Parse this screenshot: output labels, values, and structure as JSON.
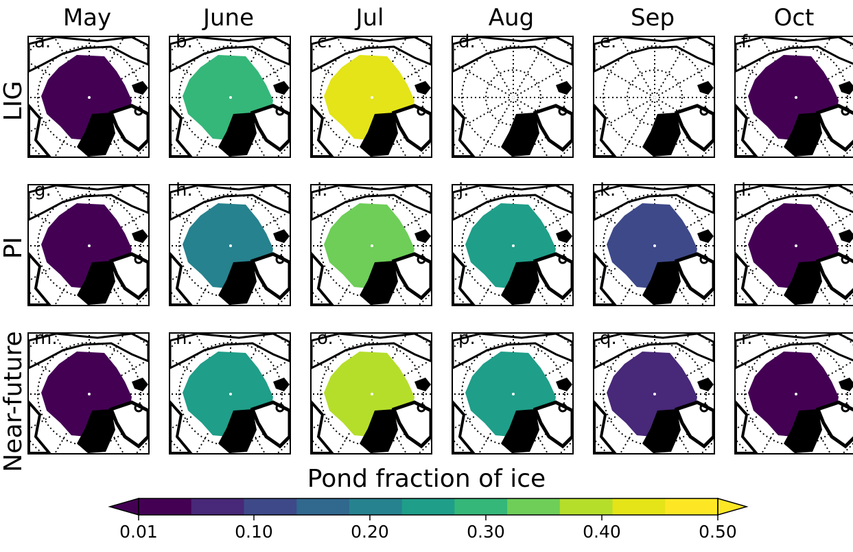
{
  "columns": [
    "May",
    "June",
    "Jul",
    "Aug",
    "Sep",
    "Oct"
  ],
  "rows": [
    "LIG",
    "PI",
    "Near-future"
  ],
  "panels": [
    {
      "label": "a.",
      "value": 0.03
    },
    {
      "label": "b.",
      "value": 0.33
    },
    {
      "label": "c.",
      "value": 0.48
    },
    {
      "label": "d.",
      "value": null
    },
    {
      "label": "e.",
      "value": null
    },
    {
      "label": "f.",
      "value": 0.04
    },
    {
      "label": "g.",
      "value": 0.04
    },
    {
      "label": "h.",
      "value": 0.22
    },
    {
      "label": "i.",
      "value": 0.37
    },
    {
      "label": "j.",
      "value": 0.3
    },
    {
      "label": "k.",
      "value": 0.1
    },
    {
      "label": "l.",
      "value": 0.04
    },
    {
      "label": "m.",
      "value": 0.03
    },
    {
      "label": "n.",
      "value": 0.3
    },
    {
      "label": "o.",
      "value": 0.42
    },
    {
      "label": "p.",
      "value": 0.3
    },
    {
      "label": "q.",
      "value": 0.05
    },
    {
      "label": "r.",
      "value": 0.04
    }
  ],
  "colorbar": {
    "title": "Pond fraction of ice",
    "ticks": [
      "0.01",
      "0.10",
      "0.20",
      "0.30",
      "0.40",
      "0.50"
    ],
    "colors": [
      "#440154",
      "#482878",
      "#3e4989",
      "#31688e",
      "#26828e",
      "#1f9e89",
      "#35b779",
      "#6ece58",
      "#b5de2b",
      "#e4e419",
      "#fde725"
    ],
    "under_color": "#440154",
    "over_color": "#fde725"
  }
}
